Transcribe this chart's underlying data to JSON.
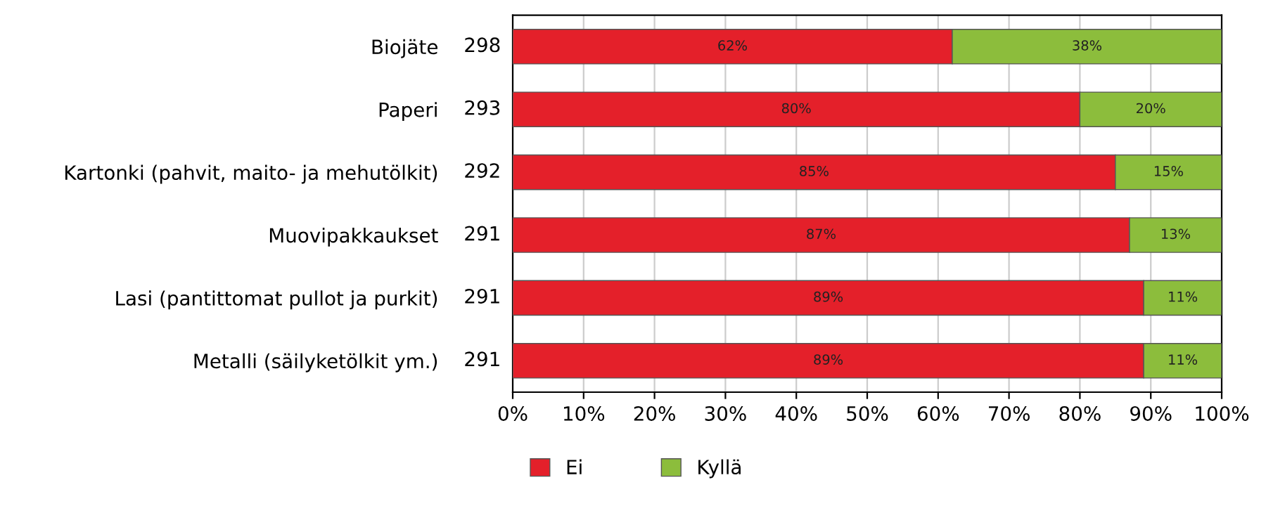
{
  "chart_data": {
    "type": "bar",
    "orientation": "horizontal",
    "stacked": true,
    "categories": [
      "Biojäte",
      "Paperi",
      "Kartonki (pahvit, maito- ja mehutölkit)",
      "Muovipakkaukset",
      "Lasi (pantittomat pullot ja purkit)",
      "Metalli (säilyketölkit ym.)"
    ],
    "series": [
      {
        "name": "Ei",
        "color": "#e4202a",
        "values": [
          62,
          80,
          85,
          87,
          89,
          89
        ],
        "value_labels": [
          "62%",
          "80%",
          "85%",
          "87%",
          "89%",
          "89%"
        ]
      },
      {
        "name": "Kyllä",
        "color": "#8cbd3c",
        "values": [
          38,
          20,
          15,
          13,
          11,
          11
        ],
        "value_labels": [
          "38%",
          "20%",
          "15%",
          "13%",
          "11%",
          "11%"
        ]
      }
    ],
    "annotations": [
      "298",
      "293",
      "292",
      "291",
      "291",
      "291"
    ],
    "xlim": [
      0,
      100
    ],
    "xticks": [
      {
        "value": 0,
        "label": "0%"
      },
      {
        "value": 10,
        "label": "10%"
      },
      {
        "value": 20,
        "label": "20%"
      },
      {
        "value": 30,
        "label": "30%"
      },
      {
        "value": 40,
        "label": "40%"
      },
      {
        "value": 50,
        "label": "50%"
      },
      {
        "value": 60,
        "label": "60%"
      },
      {
        "value": 70,
        "label": "70%"
      },
      {
        "value": 80,
        "label": "80%"
      },
      {
        "value": 90,
        "label": "90%"
      },
      {
        "value": 100,
        "label": "100%"
      }
    ],
    "grid": "x",
    "legend": "bottom"
  }
}
